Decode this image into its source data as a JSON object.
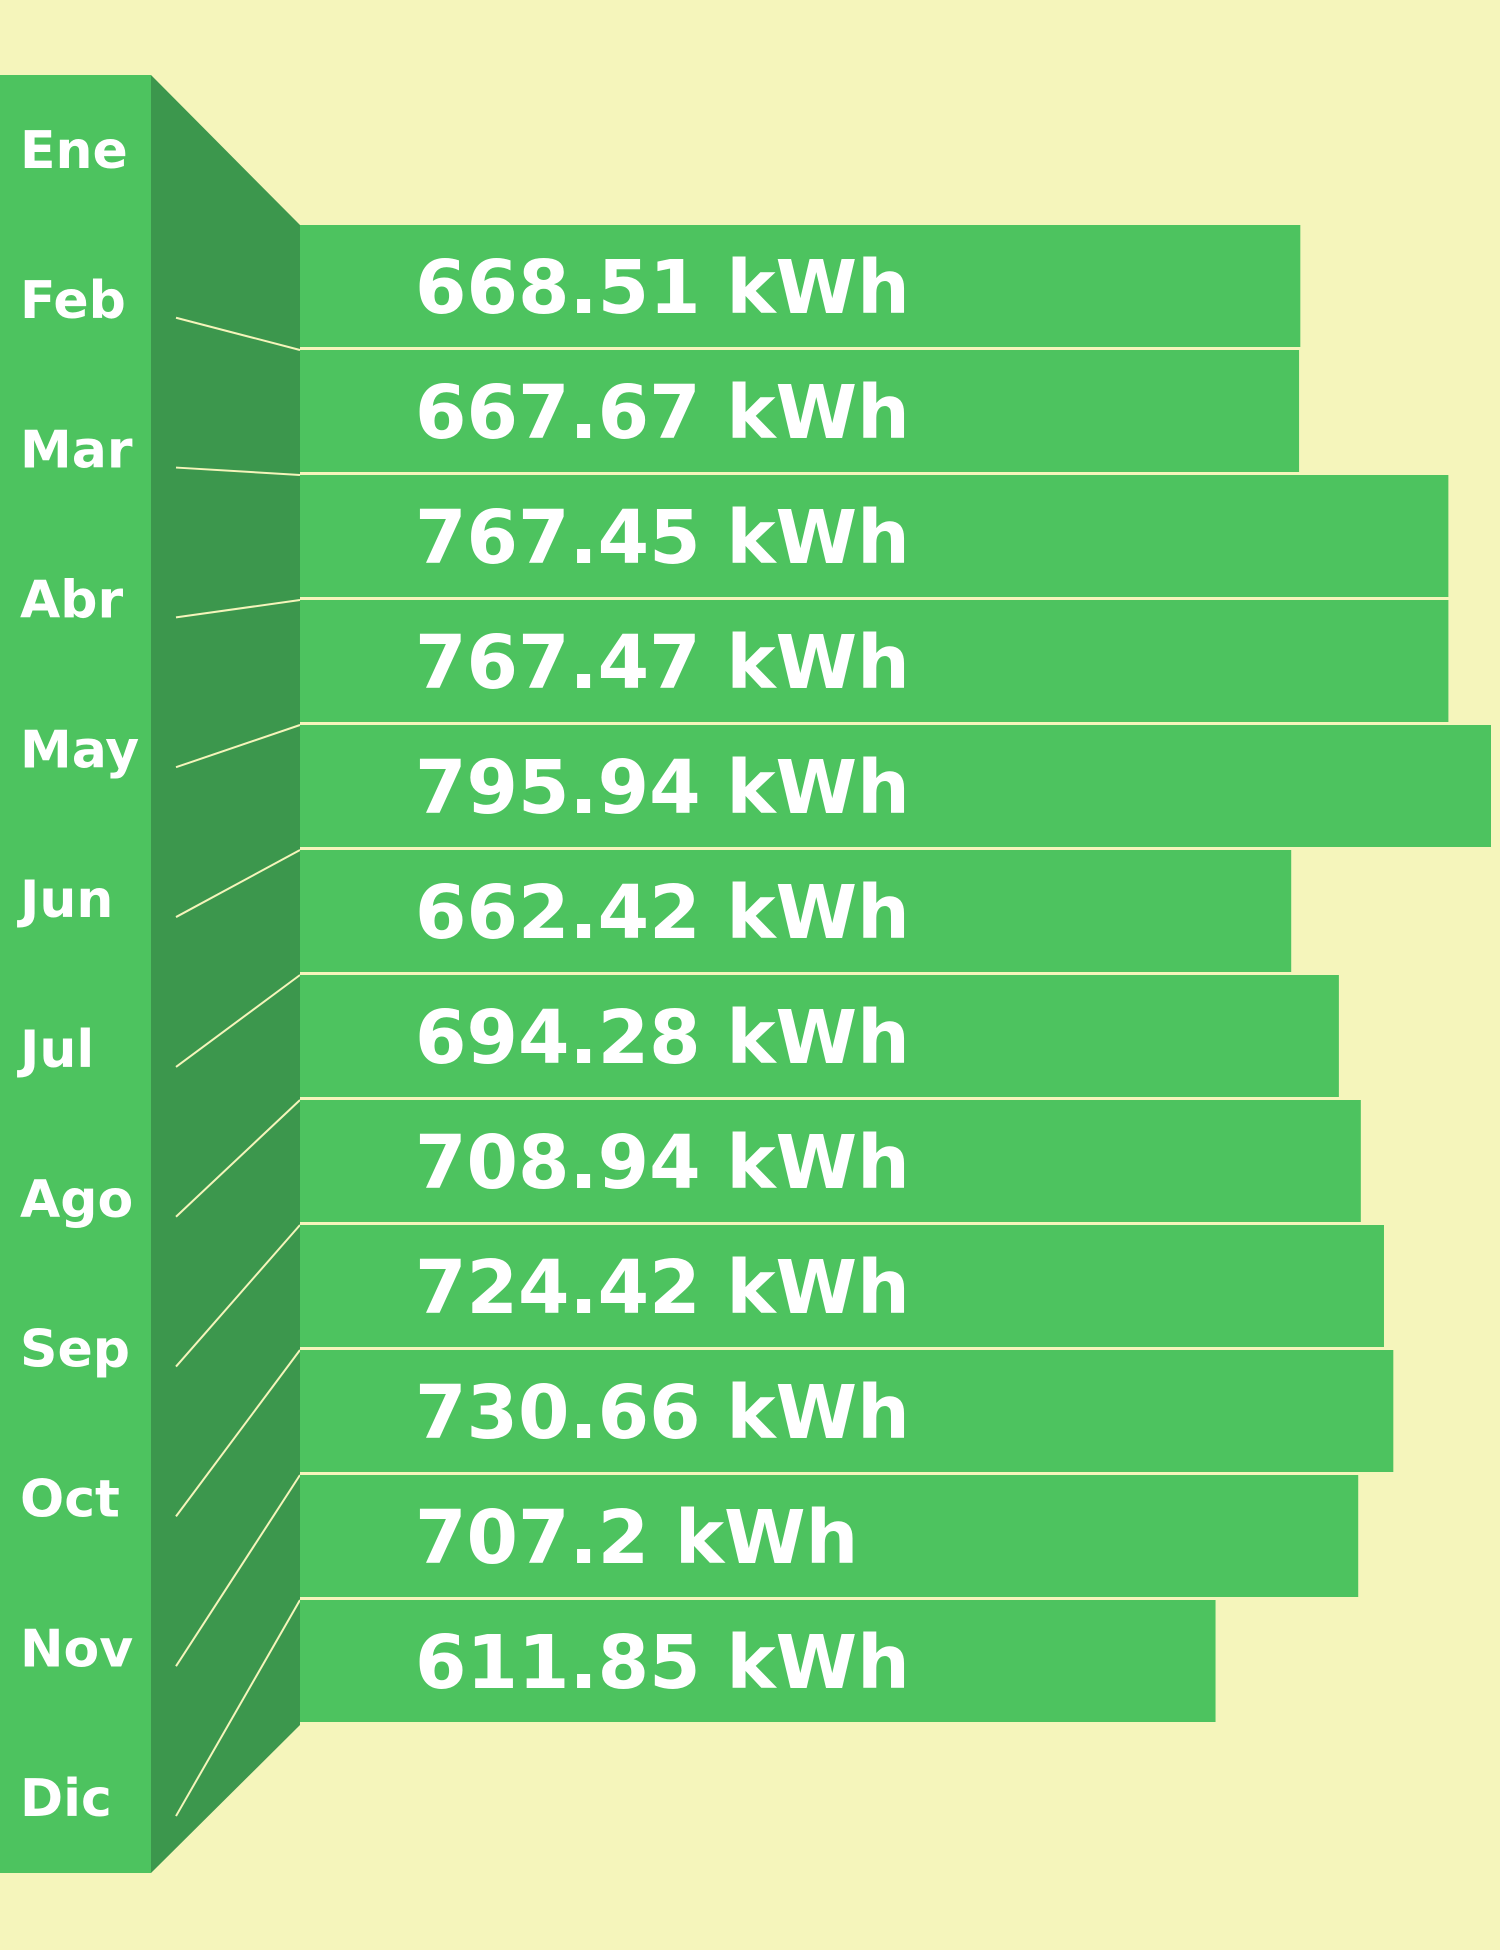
{
  "colors": {
    "background": "#f5f5bb",
    "bar": "#4dc35f",
    "side_panel": "#4dc35f",
    "side_shadow": "#3c974d",
    "separator": "#f5f5bb",
    "text": "#ffffff"
  },
  "chart_data": {
    "type": "bar",
    "orientation": "horizontal",
    "unit": "kWh",
    "months": [
      "Ene",
      "Feb",
      "Mar",
      "Abr",
      "May",
      "Jun",
      "Jul",
      "Ago",
      "Sep",
      "Oct",
      "Nov",
      "Dic"
    ],
    "bars": [
      {
        "value": 668.51,
        "label": "668.51 kWh"
      },
      {
        "value": 667.67,
        "label": "667.67 kWh"
      },
      {
        "value": 767.45,
        "label": "767.45 kWh"
      },
      {
        "value": 767.47,
        "label": "767.47 kWh"
      },
      {
        "value": 795.94,
        "label": "795.94 kWh"
      },
      {
        "value": 662.42,
        "label": "662.42 kWh"
      },
      {
        "value": 694.28,
        "label": "694.28 kWh"
      },
      {
        "value": 708.94,
        "label": "708.94 kWh"
      },
      {
        "value": 724.42,
        "label": "724.42 kWh"
      },
      {
        "value": 730.66,
        "label": "730.66 kWh"
      },
      {
        "value": 707.2,
        "label": "707.2 kWh"
      },
      {
        "value": 611.85,
        "label": "611.85 kWh"
      }
    ],
    "legend": "none",
    "grid": false
  }
}
